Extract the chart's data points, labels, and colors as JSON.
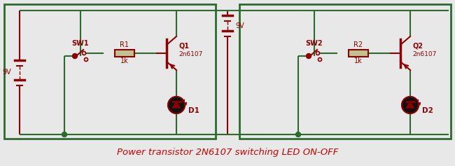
{
  "bg_color": "#e8e8e8",
  "border_color": "#2d6a2d",
  "wire_color": "#2d6a2d",
  "component_color": "#8B0000",
  "title": "Power transistor 2N6107 switching LED ON-OFF",
  "title_color": "#cc0000",
  "title_fontsize": 9.5,
  "fig_w": 6.5,
  "fig_h": 2.37,
  "dpi": 100,
  "xlim": [
    0,
    650
  ],
  "ylim": [
    0,
    237
  ]
}
